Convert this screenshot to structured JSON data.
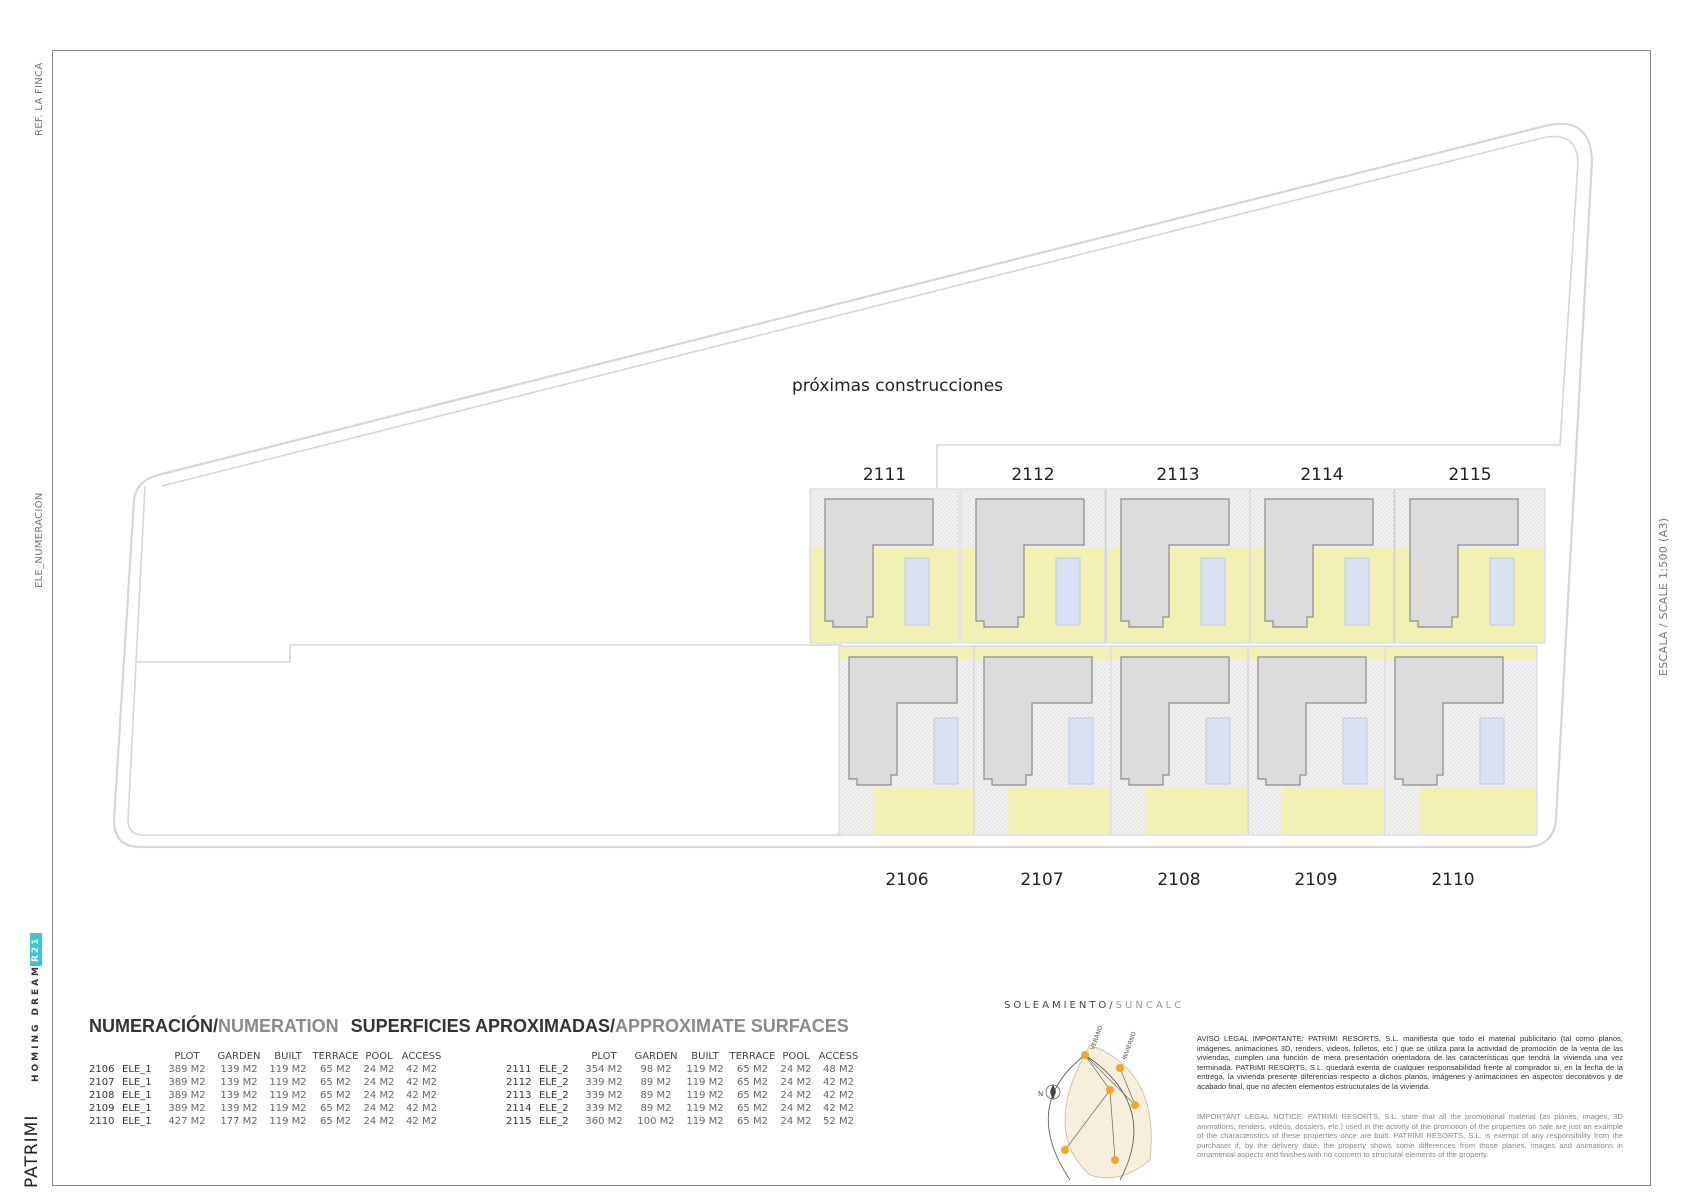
{
  "side_labels": {
    "ref": "REF. LA FINCA",
    "ele": "ELE_NUMERACIÓN",
    "scale": "ESCALA / SCALE 1:500 (A3)"
  },
  "plan": {
    "future_label": "próximas construcciones",
    "top_row": [
      "2111",
      "2112",
      "2113",
      "2114",
      "2115"
    ],
    "bottom_row": [
      "2106",
      "2107",
      "2108",
      "2109",
      "2110"
    ],
    "colors": {
      "garden": "#f2f0b3",
      "paving": "#eeeeee",
      "house": "#dcdcdc",
      "pool": "#d9e1f2",
      "outline": "#d2d2d2"
    }
  },
  "brand": {
    "logo": "PATRIMI",
    "tagline": "HOMING DREAMS /",
    "badge": "R21",
    "accent": "#3cc7cf"
  },
  "table_title": {
    "numeracion": "NUMERACIÓN/",
    "numeration": "NUMERATION",
    "superficies": "SUPERFICIES APROXIMADAS/",
    "approximate": "APPROXIMATE SURFACES"
  },
  "table_headers": [
    "PLOT",
    "GARDEN",
    "BUILT",
    "TERRACE",
    "POOL",
    "ACCESS"
  ],
  "table_left": [
    {
      "num": "2106",
      "ele": "ELE_1",
      "plot": "389 M2",
      "garden": "139 M2",
      "built": "119 M2",
      "terrace": "65 M2",
      "pool": "24 M2",
      "access": "42 M2"
    },
    {
      "num": "2107",
      "ele": "ELE_1",
      "plot": "389 M2",
      "garden": "139 M2",
      "built": "119 M2",
      "terrace": "65 M2",
      "pool": "24 M2",
      "access": "42 M2"
    },
    {
      "num": "2108",
      "ele": "ELE_1",
      "plot": "389 M2",
      "garden": "139 M2",
      "built": "119 M2",
      "terrace": "65 M2",
      "pool": "24 M2",
      "access": "42 M2"
    },
    {
      "num": "2109",
      "ele": "ELE_1",
      "plot": "389 M2",
      "garden": "139 M2",
      "built": "119 M2",
      "terrace": "65 M2",
      "pool": "24 M2",
      "access": "42 M2"
    },
    {
      "num": "2110",
      "ele": "ELE_1",
      "plot": "427 M2",
      "garden": "177 M2",
      "built": "119 M2",
      "terrace": "65 M2",
      "pool": "24 M2",
      "access": "42 M2"
    }
  ],
  "table_right": [
    {
      "num": "2111",
      "ele": "ELE_2",
      "plot": "354 M2",
      "garden": "98 M2",
      "built": "119 M2",
      "terrace": "65 M2",
      "pool": "24 M2",
      "access": "48 M2"
    },
    {
      "num": "2112",
      "ele": "ELE_2",
      "plot": "339 M2",
      "garden": "89 M2",
      "built": "119 M2",
      "terrace": "65 M2",
      "pool": "24 M2",
      "access": "42 M2"
    },
    {
      "num": "2113",
      "ele": "ELE_2",
      "plot": "339 M2",
      "garden": "89 M2",
      "built": "119 M2",
      "terrace": "65 M2",
      "pool": "24 M2",
      "access": "42 M2"
    },
    {
      "num": "2114",
      "ele": "ELE_2",
      "plot": "339 M2",
      "garden": "89 M2",
      "built": "119 M2",
      "terrace": "65 M2",
      "pool": "24 M2",
      "access": "42 M2"
    },
    {
      "num": "2115",
      "ele": "ELE_2",
      "plot": "360 M2",
      "garden": "100 M2",
      "built": "119 M2",
      "terrace": "65 M2",
      "pool": "24 M2",
      "access": "52 M2"
    }
  ],
  "sun": {
    "title_a": "SOLEAMIENTO/",
    "title_b": "SUNCALC",
    "verano": "VERANO",
    "invierno": "INVIERNO",
    "north": "N"
  },
  "legal": {
    "es": "AVISO LEGAL IMPORTANTE: PATRIMI RESORTS, S.L. manifiesta que todo el material publicitario (tal como planos, imágenes, animaciones 3D, renders, videos, folletos, etc.) que se utiliza para la actividad de promoción de la venta de las viviendas, cumplen una función de mera presentación orientadora de las características que tendrá la vivienda una vez terminada. PATRIMI RESORTS, S.L. quedará exenta de cualquier responsabilidad frente al comprador si, en la fecha de la entrega, la vivienda presente diferencias respecto a dichos planos, imágenes y animaciones en aspectos decorativos y de acabado final, que no afecten elementos estructurales de la vivienda.",
    "en": "IMPORTANT LEGAL NOTICE: PATRIMI RESORTS, S.L. state that all the promotional material (as planes, images, 3D animations, renders, videos, dossiers, etc.) used in the activity of the promotion of the properties on sale are just an example of the characteristics of these properties once are built. PATRIMI RESORTS, S.L. is exempt of any responsibility from the purchaser if, by the delivery date, the property shows some differences from those planes, images and animations in ornamental aspects and finishes with no concern to structural elements of the property."
  }
}
